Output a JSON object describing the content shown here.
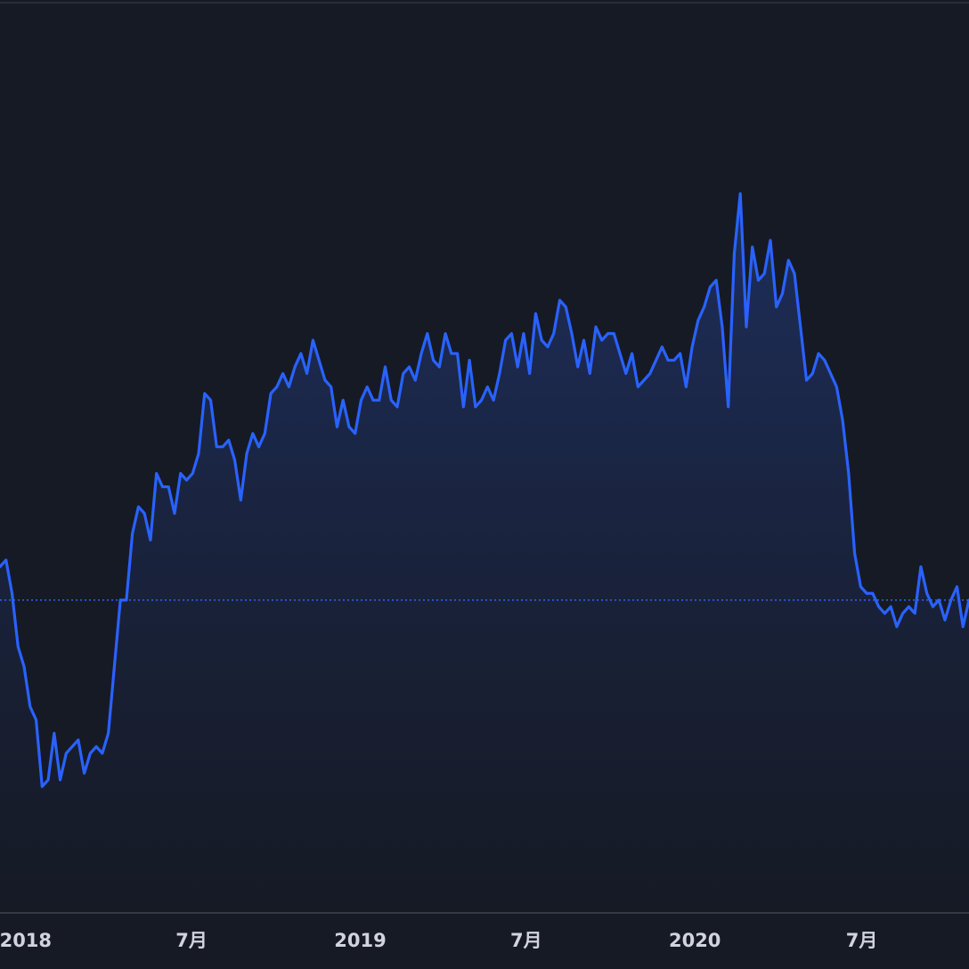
{
  "chart_data": {
    "type": "area",
    "title": "",
    "xlabel": "",
    "ylabel": "",
    "x_tick_labels": [
      "2018",
      "7月",
      "2019",
      "7月",
      "2020",
      "7月"
    ],
    "x_tick_dates": [
      "2018-01-01",
      "2018-07-01",
      "2019-01-01",
      "2019-07-01",
      "2020-01-01",
      "2020-07-01"
    ],
    "x_range": [
      "2017-12-04",
      "2020-10-26"
    ],
    "ylim": [
      0,
      100
    ],
    "grid": false,
    "legend": "none",
    "reference_line": 36,
    "colors": {
      "background": "#161a25",
      "line": "#2962ff",
      "fill": "#1c2a52",
      "reference_line": "#2962ff",
      "tick_text": "#d1d4dc",
      "axis": "#363a45"
    },
    "series": [
      {
        "values": [
          41,
          42,
          37,
          29,
          26,
          20,
          18,
          8,
          9,
          16,
          9,
          13,
          14,
          15,
          10,
          13,
          14,
          13,
          16,
          26,
          36,
          36,
          46,
          50,
          49,
          45,
          55,
          53,
          53,
          49,
          55,
          54,
          55,
          58,
          67,
          66,
          59,
          59,
          60,
          57,
          51,
          58,
          61,
          59,
          61,
          67,
          68,
          70,
          68,
          71,
          73,
          70,
          75,
          72,
          69,
          68,
          62,
          66,
          62,
          61,
          66,
          68,
          66,
          66,
          71,
          66,
          65,
          70,
          71,
          69,
          73,
          76,
          72,
          71,
          76,
          73,
          73,
          65,
          72,
          65,
          66,
          68,
          66,
          70,
          75,
          76,
          71,
          76,
          70,
          79,
          75,
          74,
          76,
          81,
          80,
          76,
          71,
          75,
          70,
          77,
          75,
          76,
          76,
          73,
          70,
          73,
          68,
          69,
          70,
          72,
          74,
          72,
          72,
          73,
          68,
          74,
          78,
          80,
          83,
          84,
          77,
          65,
          88,
          97,
          77,
          89,
          84,
          85,
          90,
          80,
          82,
          87,
          85,
          77,
          69,
          70,
          73,
          72,
          70,
          68,
          63,
          55,
          43,
          38,
          37,
          37,
          35,
          34,
          35,
          32,
          34,
          35,
          34,
          41,
          37,
          35,
          36,
          33,
          36,
          38,
          32,
          36
        ]
      }
    ]
  }
}
